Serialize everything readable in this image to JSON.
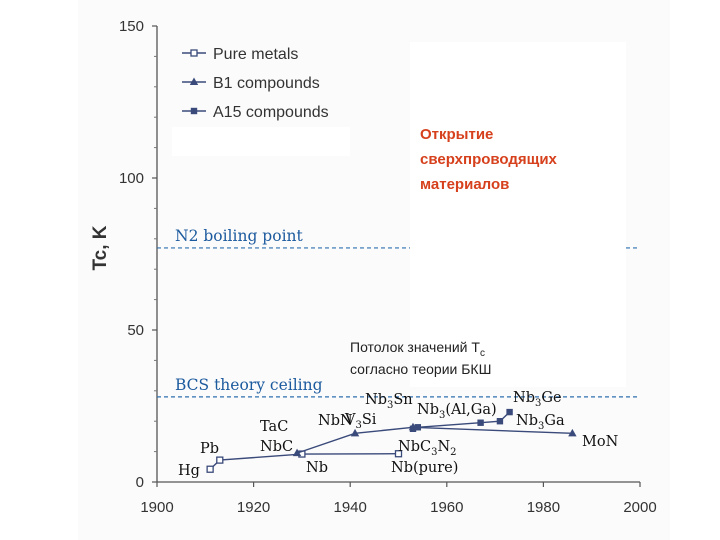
{
  "chart_data": {
    "type": "line",
    "ylabel": "Tc, K",
    "xlabel": "",
    "title": "",
    "xlim": [
      1900,
      2000
    ],
    "ylim": [
      0,
      150
    ],
    "xticks": [
      "1900",
      "1920",
      "1940",
      "1960",
      "1980",
      "2000"
    ],
    "yticks": [
      "0",
      "50",
      "100",
      "150"
    ],
    "legend_position": "top-left",
    "series": [
      {
        "name": "Pure metals",
        "marker": "open-square",
        "points": [
          {
            "x": 1911,
            "y": 4.2,
            "label": "Hg"
          },
          {
            "x": 1913,
            "y": 7.2,
            "label": "Pb"
          },
          {
            "x": 1930,
            "y": 9.2,
            "label": "Nb"
          },
          {
            "x": 1950,
            "y": 9.3,
            "label": "Nb(pure)"
          }
        ]
      },
      {
        "name": "B1 compounds",
        "marker": "triangle",
        "points": [
          {
            "x": 1929,
            "y": 9.5,
            "label": "TaC NbC"
          },
          {
            "x": 1941,
            "y": 16,
            "label": "NbN"
          },
          {
            "x": 1953,
            "y": 18,
            "label": "NbC3N2"
          },
          {
            "x": 1986,
            "y": 16,
            "label": "MoN"
          }
        ]
      },
      {
        "name": "A15 compounds",
        "marker": "filled-square",
        "points": [
          {
            "x": 1953,
            "y": 17.5,
            "label": "V3Si"
          },
          {
            "x": 1954,
            "y": 18,
            "label": "Nb3Sn"
          },
          {
            "x": 1967,
            "y": 19.5,
            "label": "Nb3(Al,Ga)"
          },
          {
            "x": 1971,
            "y": 20,
            "label": "Nb3Ga"
          },
          {
            "x": 1973,
            "y": 23,
            "label": "Nb3Ge"
          }
        ]
      }
    ],
    "reference_lines": [
      {
        "y": 77,
        "label": "N2 boiling point"
      },
      {
        "y": 28,
        "label": "BCS theory ceiling"
      }
    ]
  },
  "colors": {
    "axis": "#555555",
    "line": "#3a4a7a",
    "reference": "#2f6fb0",
    "annotation_red": "#d6401c"
  },
  "annotations": {
    "discovery_line1": "Открытие",
    "discovery_line2": "сверхпроводящих",
    "discovery_line3": "материалов",
    "ceiling_line1": "Потолок значений T",
    "ceiling_sub": "c",
    "ceiling_line2": "согласно теории БКШ"
  }
}
